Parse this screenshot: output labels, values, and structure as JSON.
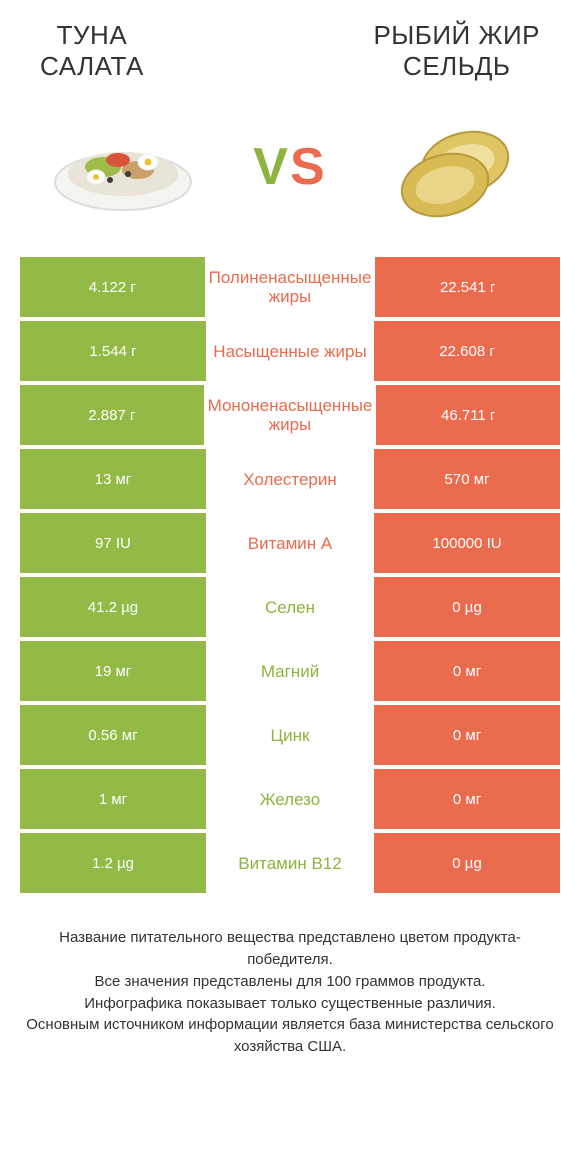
{
  "colors": {
    "green": "#93b947",
    "green_text": "#8fb33f",
    "orange": "#ea6b4d",
    "text": "#333333",
    "background": "#ffffff"
  },
  "header": {
    "left_title": "ТУНА\nСАЛАТА",
    "right_title": "РЫБИЙ ЖИР\nСЕЛЬДЬ"
  },
  "vs": {
    "v": "V",
    "s": "S"
  },
  "rows": [
    {
      "left": "4.122 г",
      "label": "Полиненасыщенные жиры",
      "right": "22.541 г",
      "winner": "right"
    },
    {
      "left": "1.544 г",
      "label": "Насыщенные жиры",
      "right": "22.608 г",
      "winner": "right"
    },
    {
      "left": "2.887 г",
      "label": "Мононенасыщенные жиры",
      "right": "46.711 г",
      "winner": "right"
    },
    {
      "left": "13 мг",
      "label": "Холестерин",
      "right": "570 мг",
      "winner": "right"
    },
    {
      "left": "97 IU",
      "label": "Витамин A",
      "right": "100000 IU",
      "winner": "right"
    },
    {
      "left": "41.2 µg",
      "label": "Селен",
      "right": "0 µg",
      "winner": "left"
    },
    {
      "left": "19 мг",
      "label": "Магний",
      "right": "0 мг",
      "winner": "left"
    },
    {
      "left": "0.56 мг",
      "label": "Цинк",
      "right": "0 мг",
      "winner": "left"
    },
    {
      "left": "1 мг",
      "label": "Железо",
      "right": "0 мг",
      "winner": "left"
    },
    {
      "left": "1.2 µg",
      "label": "Витамин B12",
      "right": "0 µg",
      "winner": "left"
    }
  ],
  "footer": {
    "line1": "Название питательного вещества представлено цветом продукта-победителя.",
    "line2": "Все значения представлены для 100 граммов продукта.",
    "line3": "Инфографика показывает только существенные различия.",
    "line4": "Основным источником информации является база министерства сельского хозяйства США."
  }
}
